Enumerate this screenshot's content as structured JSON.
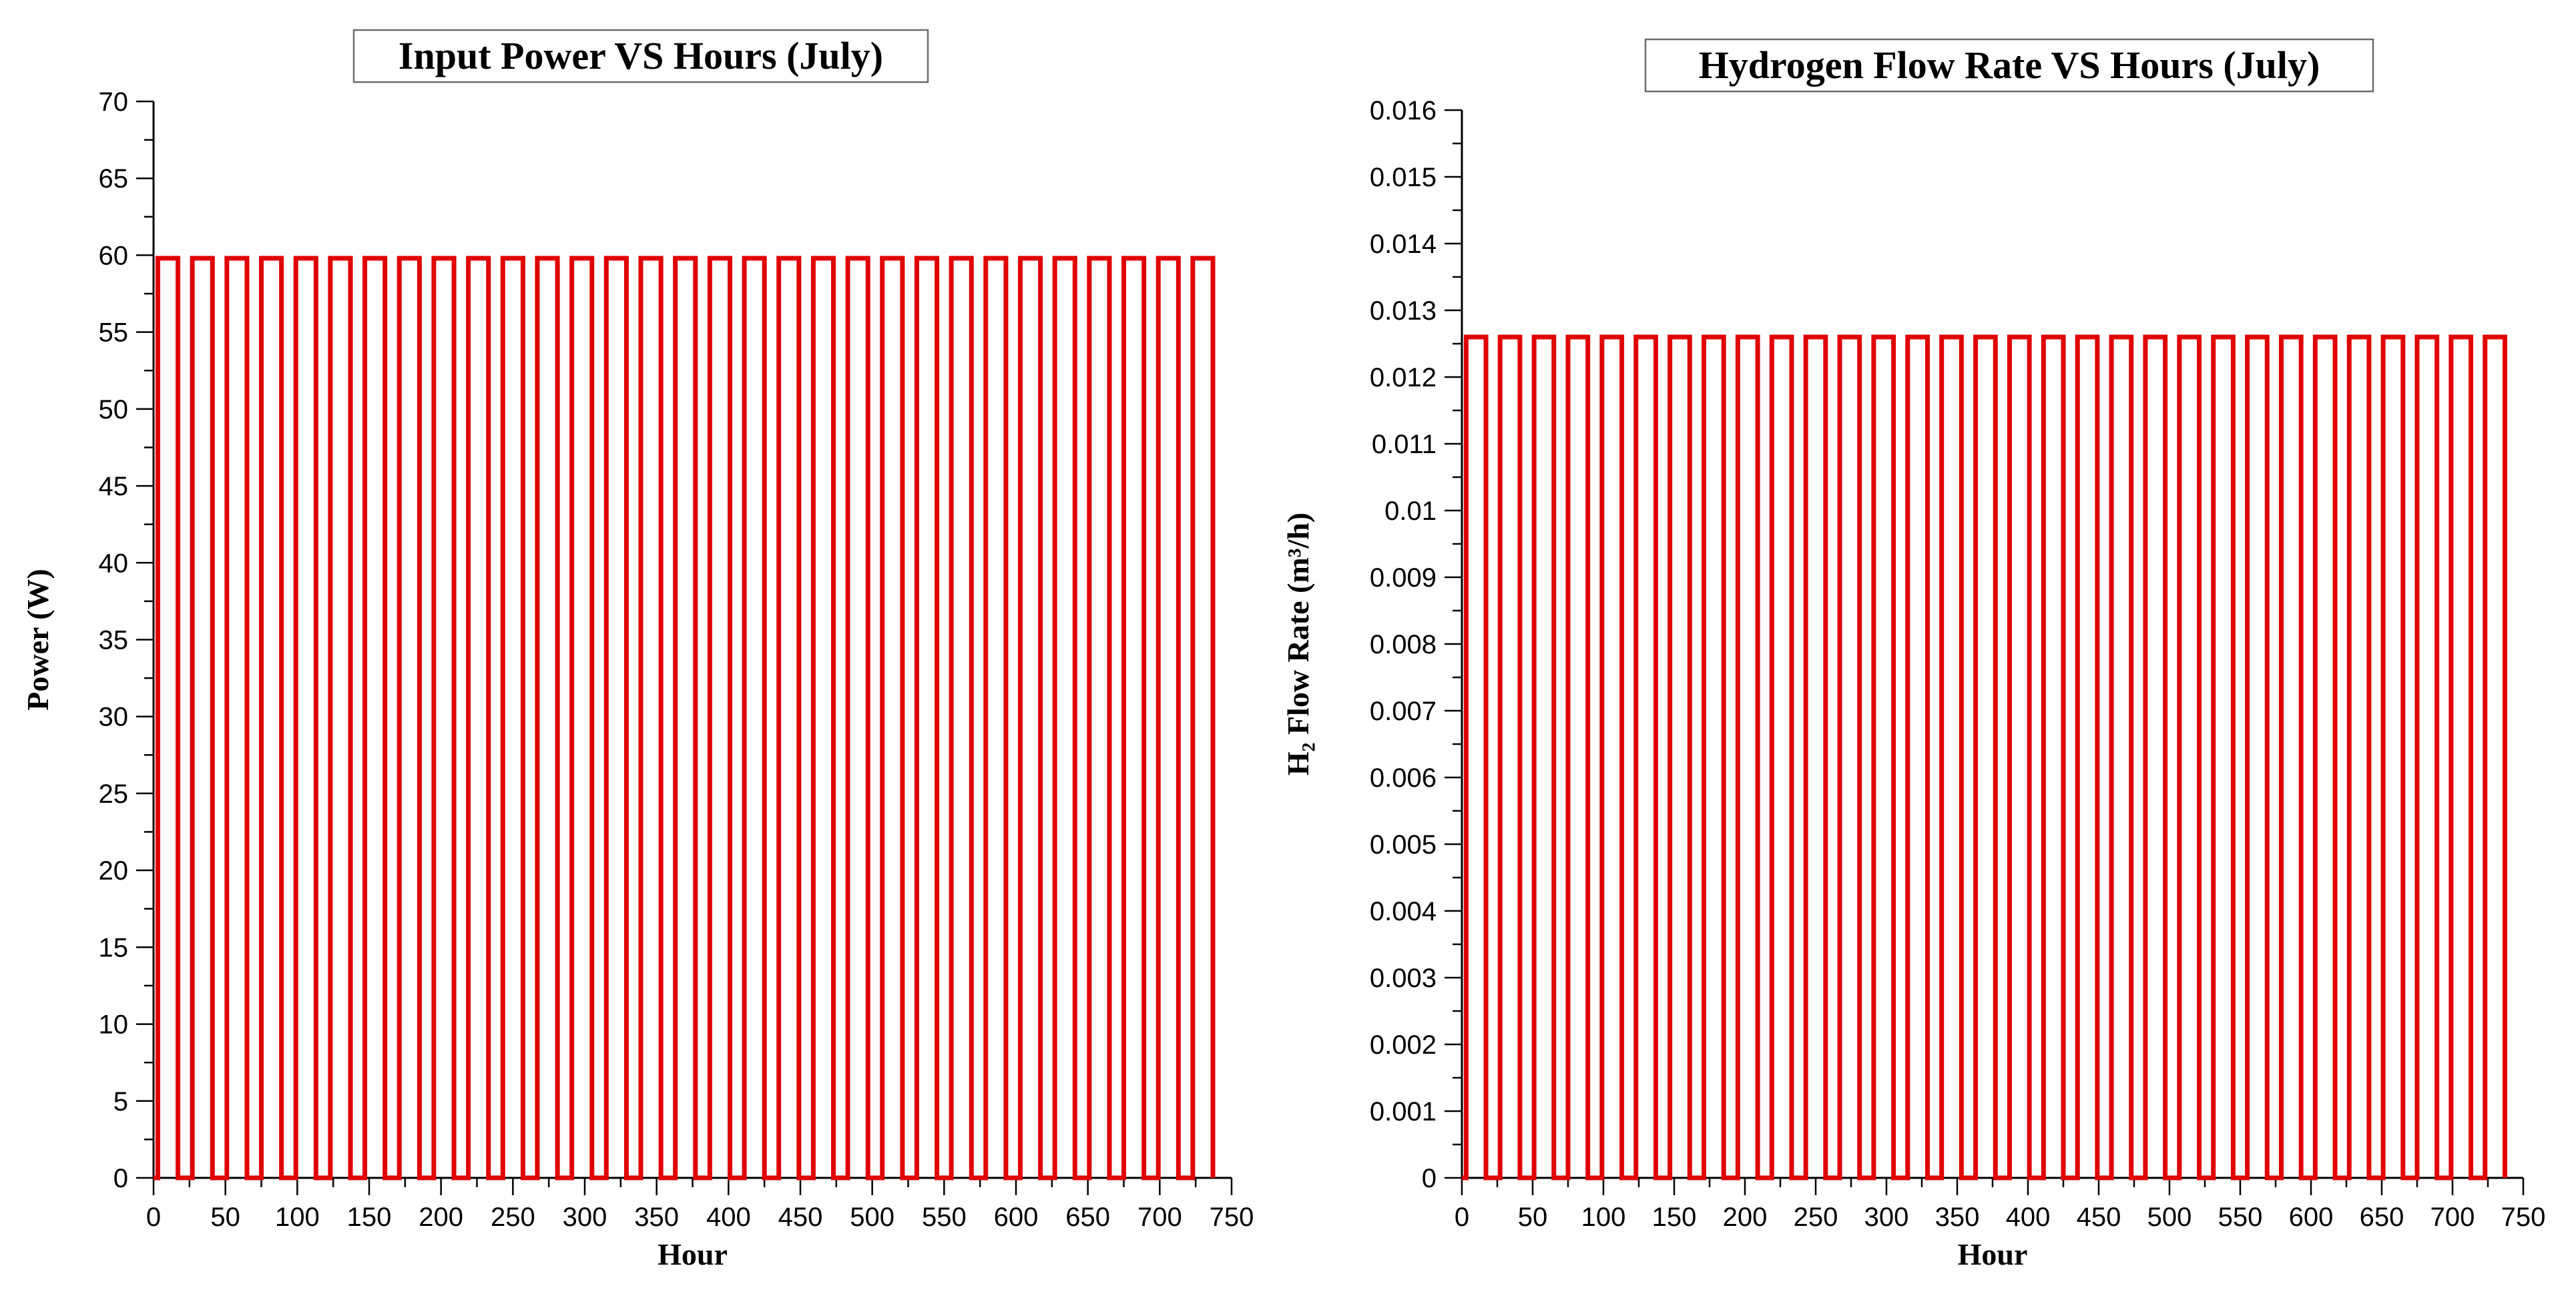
{
  "chart_data": [
    {
      "type": "line",
      "title": "Input Power VS Hours (July)",
      "xlabel": "Hour",
      "ylabel": "Power  (W)",
      "xlim": [
        0,
        750
      ],
      "ylim": [
        0,
        70
      ],
      "x_ticks": [
        "0",
        "50",
        "100",
        "150",
        "200",
        "250",
        "300",
        "350",
        "400",
        "450",
        "500",
        "550",
        "600",
        "650",
        "700",
        "750"
      ],
      "y_ticks": [
        "0",
        "5",
        "10",
        "15",
        "20",
        "25",
        "30",
        "35",
        "40",
        "45",
        "50",
        "55",
        "60",
        "65",
        "70"
      ],
      "grid": false,
      "series_color": "#e00000",
      "series": [
        {
          "pulse_start_hour": 3,
          "period_hours": 24,
          "on_hours": 14,
          "days": 31,
          "on_value": 59.8,
          "off_value": 0
        }
      ]
    },
    {
      "type": "line",
      "title": "Hydrogen Flow Rate VS Hours (July)",
      "xlabel": "Hour",
      "ylabel": "H₂ Flow Rate (m³/h)",
      "xlim": [
        0,
        750
      ],
      "ylim": [
        0,
        0.016
      ],
      "x_ticks": [
        "0",
        "50",
        "100",
        "150",
        "200",
        "250",
        "300",
        "350",
        "400",
        "450",
        "500",
        "550",
        "600",
        "650",
        "700",
        "750"
      ],
      "y_ticks": [
        "0",
        "0.001",
        "0.002",
        "0.003",
        "0.004",
        "0.005",
        "0.006",
        "0.007",
        "0.008",
        "0.009",
        "0.01",
        "0.011",
        "0.012",
        "0.013",
        "0.014",
        "0.015",
        "0.016"
      ],
      "grid": false,
      "series_color": "#e00000",
      "series": [
        {
          "pulse_start_hour": 3,
          "period_hours": 24,
          "on_hours": 14,
          "days": 31,
          "on_value": 0.0126,
          "off_value": 0
        }
      ]
    }
  ]
}
